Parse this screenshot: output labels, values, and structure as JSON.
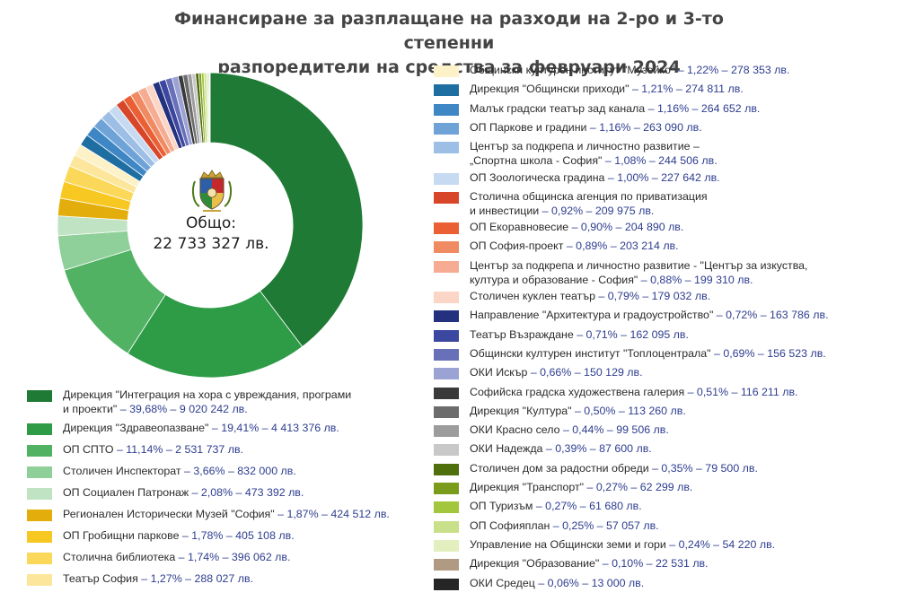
{
  "chart_data": {
    "type": "donut",
    "title": "Финансиране за разплащане на разходи на 2-ро и 3-то степенни разпоредители на средства за февруари 2024",
    "title_lines": [
      "Финансиране за разплащане на разходи на 2-ро и 3-то степенни",
      "разпоредители на средства за февруари 2024"
    ],
    "center_label": [
      "Общо:",
      "22 733 327 лв."
    ],
    "total": 22733327,
    "unit": "лв.",
    "legend_placement": "bottom-left and right",
    "slices": [
      {
        "name": "Дирекция \"Интеграция на хора с увреждания, програми и проекти\"",
        "label_lines": [
          "Дирекция \"Интеграция на хора с увреждания, програми",
          "и проекти\""
        ],
        "percent": 39.68,
        "value": 9020242,
        "value_text": " – 39,68% – 9 020 242 лв.",
        "color": "#1e7a35"
      },
      {
        "name": "Дирекция \"Здравеопазване\"",
        "label_lines": [
          "Дирекция \"Здравеопазване\""
        ],
        "percent": 19.41,
        "value": 4413376,
        "value_text": " – 19,41% – 4 413 376 лв.",
        "color": "#2e9b46"
      },
      {
        "name": "ОП СПТО",
        "label_lines": [
          "ОП СПТО"
        ],
        "percent": 11.14,
        "value": 2531737,
        "value_text": " – 11,14% – 2 531 737 лв.",
        "color": "#52b264"
      },
      {
        "name": "Столичен Инспекторат",
        "label_lines": [
          "Столичен Инспекторат"
        ],
        "percent": 3.66,
        "value": 832000,
        "value_text": " – 3,66% – 832 000 лв.",
        "color": "#8fcf99"
      },
      {
        "name": "ОП Социален Патронаж",
        "label_lines": [
          "ОП Социален Патронаж"
        ],
        "percent": 2.08,
        "value": 473392,
        "value_text": " – 2,08% – 473 392 лв.",
        "color": "#bfe3c3"
      },
      {
        "name": "Регионален Исторически Музей \"София\"",
        "label_lines": [
          "Регионален Исторически Музей \"София\""
        ],
        "percent": 1.87,
        "value": 424512,
        "value_text": " – 1,87% – 424 512 лв.",
        "color": "#e3ad0c"
      },
      {
        "name": "ОП Гробищни паркове",
        "label_lines": [
          "ОП Гробищни паркове"
        ],
        "percent": 1.78,
        "value": 405108,
        "value_text": " – 1,78% – 405 108 лв.",
        "color": "#f8c822"
      },
      {
        "name": "Столична библиотека",
        "label_lines": [
          "Столична библиотека"
        ],
        "percent": 1.74,
        "value": 396062,
        "value_text": " – 1,74% – 396 062 лв.",
        "color": "#fbd85a"
      },
      {
        "name": "Театър София",
        "label_lines": [
          "Театър София"
        ],
        "percent": 1.27,
        "value": 288027,
        "value_text": " – 1,27% – 288 027 лв.",
        "color": "#fce69c"
      },
      {
        "name": "Общински културен институт \"Музейко\"",
        "label_lines": [
          "Общински културен институт \"Музейко\""
        ],
        "percent": 1.22,
        "value": 278353,
        "value_text": " – 1,22% – 278 353 лв.",
        "color": "#fdf1c8"
      },
      {
        "name": "Дирекция \"Общински приходи\"",
        "label_lines": [
          "Дирекция \"Общински приходи\""
        ],
        "percent": 1.21,
        "value": 274811,
        "value_text": " – 1,21% – 274 811 лв.",
        "color": "#1f6ea2"
      },
      {
        "name": "Малък градски театър зад канала",
        "label_lines": [
          "Малък градски театър зад канала"
        ],
        "percent": 1.16,
        "value": 264652,
        "value_text": " – 1,16% – 264 652 лв.",
        "color": "#3f87c4"
      },
      {
        "name": "ОП Паркове и градини",
        "label_lines": [
          "ОП Паркове и градини"
        ],
        "percent": 1.16,
        "value": 263090,
        "value_text": " – 1,16% – 263 090 лв.",
        "color": "#6fa3d8"
      },
      {
        "name": "Център за подкрепа и личностно развитие – „Спортна школа - София\"",
        "label_lines": [
          "Център за подкрепа и личностно развитие –",
          "„Спортна школа - София\""
        ],
        "percent": 1.08,
        "value": 244506,
        "value_text": " – 1,08% – 244 506 лв.",
        "color": "#9dbfe6"
      },
      {
        "name": "ОП Зоологическа градина",
        "label_lines": [
          "ОП Зоологическа градина"
        ],
        "percent": 1.0,
        "value": 227642,
        "value_text": " – 1,00% – 227 642 лв.",
        "color": "#c6daf2"
      },
      {
        "name": "Столична общинска агенция по приватизация и инвестиции",
        "label_lines": [
          "Столична общинска агенция по приватизация",
          "и инвестиции"
        ],
        "percent": 0.92,
        "value": 209975,
        "value_text": " – 0,92% – 209 975 лв.",
        "color": "#d8462a"
      },
      {
        "name": "ОП Екоравновесие",
        "label_lines": [
          "ОП Екоравновесие"
        ],
        "percent": 0.9,
        "value": 204890,
        "value_text": " – 0,90% – 204 890 лв.",
        "color": "#ea6034"
      },
      {
        "name": "ОП София-проект",
        "label_lines": [
          "ОП София-проект"
        ],
        "percent": 0.89,
        "value": 203214,
        "value_text": " – 0,89% – 203 214 лв.",
        "color": "#f08a62"
      },
      {
        "name": "Център за подкрепа и личностно развитие - \"Център за изкуства, култура и образование - София\"",
        "label_lines": [
          "Център за подкрепа и личностно развитие - \"Център за изкуства,",
          "култура и образование - София\""
        ],
        "percent": 0.88,
        "value": 199310,
        "value_text": " – 0,88% – 199 310 лв.",
        "color": "#f5ac92"
      },
      {
        "name": "Столичен куклен театър",
        "label_lines": [
          "Столичен куклен театър"
        ],
        "percent": 0.79,
        "value": 179032,
        "value_text": " – 0,79% – 179 032 лв.",
        "color": "#fbd6c6"
      },
      {
        "name": "Направление \"Архитектура и градоустройство\"",
        "label_lines": [
          "Направление \"Архитектура и градоустройство\""
        ],
        "percent": 0.72,
        "value": 163786,
        "value_text": " – 0,72% – 163 786 лв.",
        "color": "#23317e"
      },
      {
        "name": "Театър Възраждане",
        "label_lines": [
          "Театър Възраждане"
        ],
        "percent": 0.71,
        "value": 162095,
        "value_text": " – 0,71% – 162 095 лв.",
        "color": "#3c479f"
      },
      {
        "name": "Общински културен институт \"Топлоцентрала\"",
        "label_lines": [
          "Общински културен институт \"Топлоцентрала\""
        ],
        "percent": 0.69,
        "value": 156523,
        "value_text": " – 0,69% – 156 523 лв.",
        "color": "#6870b8"
      },
      {
        "name": "ОКИ Искър",
        "label_lines": [
          "ОКИ Искър"
        ],
        "percent": 0.66,
        "value": 150129,
        "value_text": " – 0,66% – 150 129 лв.",
        "color": "#9ba2d4"
      },
      {
        "name": "Софийска градска художествена галерия",
        "label_lines": [
          "Софийска градска художествена галерия"
        ],
        "percent": 0.51,
        "value": 116211,
        "value_text": " – 0,51% – 116 211 лв.",
        "color": "#3a3a3a"
      },
      {
        "name": "Дирекция \"Култура\"",
        "label_lines": [
          "Дирекция \"Култура\""
        ],
        "percent": 0.5,
        "value": 113260,
        "value_text": " – 0,50% – 113 260 лв.",
        "color": "#6c6c6c"
      },
      {
        "name": "ОКИ Красно село",
        "label_lines": [
          "ОКИ Красно село"
        ],
        "percent": 0.44,
        "value": 99506,
        "value_text": " – 0,44% – 99 506 лв.",
        "color": "#9c9c9c"
      },
      {
        "name": "ОКИ Надежда",
        "label_lines": [
          "ОКИ Надежда"
        ],
        "percent": 0.39,
        "value": 87600,
        "value_text": " – 0,39% – 87 600 лв.",
        "color": "#c8c8c8"
      },
      {
        "name": "Столичен дом за радостни обреди",
        "label_lines": [
          "Столичен дом за радостни обреди"
        ],
        "percent": 0.35,
        "value": 79500,
        "value_text": " – 0,35% – 79 500 лв.",
        "color": "#4f6e0c"
      },
      {
        "name": "Дирекция \"Транспорт\"",
        "label_lines": [
          "Дирекция \"Транспорт\""
        ],
        "percent": 0.27,
        "value": 62299,
        "value_text": " – 0,27% – 62 299 лв.",
        "color": "#7a9c1a"
      },
      {
        "name": "ОП Туризъм",
        "label_lines": [
          "ОП Туризъм"
        ],
        "percent": 0.27,
        "value": 61680,
        "value_text": " – 0,27% – 61 680 лв.",
        "color": "#a3c73c"
      },
      {
        "name": "ОП Софияплан",
        "label_lines": [
          "ОП Софияплан"
        ],
        "percent": 0.25,
        "value": 57057,
        "value_text": " – 0,25% – 57 057 лв.",
        "color": "#c9e08a"
      },
      {
        "name": "Управление на Общински земи и гори",
        "label_lines": [
          "Управление на Общински земи и гори"
        ],
        "percent": 0.24,
        "value": 54220,
        "value_text": " – 0,24% – 54 220 лв.",
        "color": "#e4efc0"
      },
      {
        "name": "Дирекция \"Образование\"",
        "label_lines": [
          "Дирекция \"Образование\""
        ],
        "percent": 0.1,
        "value": 22531,
        "value_text": " – 0,10% – 22 531 лв.",
        "color": "#b09a82"
      },
      {
        "name": "ОКИ Средец",
        "label_lines": [
          "ОКИ Средец"
        ],
        "percent": 0.06,
        "value": 13000,
        "value_text": " – 0,06% – 13 000 лв.",
        "color": "#252525"
      }
    ]
  },
  "emblem": {
    "icon": "sofia-coat-of-arms-icon",
    "colors": [
      "#c8a23a",
      "#c4282d",
      "#2f8a3c",
      "#2d5fa8"
    ]
  }
}
